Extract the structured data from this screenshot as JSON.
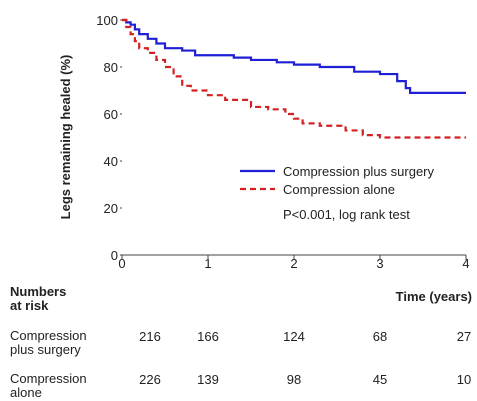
{
  "chart_data": {
    "type": "line",
    "steps": true,
    "ylabel": "Legs remaining healed (%)",
    "xlabel": "Time (years)",
    "xlim": [
      0,
      4
    ],
    "xticks": [
      0,
      1,
      2,
      3,
      4
    ],
    "ylim": [
      0,
      100
    ],
    "yticks": [
      0,
      20,
      40,
      60,
      80,
      100
    ],
    "annotation": "P<0.001, log rank test",
    "series": [
      {
        "name": "Compression plus surgery",
        "color": "#1f1fd6",
        "dash": false,
        "x": [
          0,
          0.05,
          0.1,
          0.15,
          0.2,
          0.3,
          0.4,
          0.5,
          0.7,
          0.85,
          1.3,
          1.5,
          1.8,
          2.0,
          2.3,
          2.7,
          3.0,
          3.2,
          3.3,
          3.35,
          4.0
        ],
        "values": [
          100,
          99,
          98,
          96,
          94,
          92,
          90,
          88,
          87,
          85,
          84,
          83,
          82,
          81,
          80,
          78,
          77,
          74,
          71,
          69,
          69
        ]
      },
      {
        "name": "Compression alone",
        "color": "#d42020",
        "dash": true,
        "x": [
          0,
          0.05,
          0.1,
          0.15,
          0.2,
          0.3,
          0.4,
          0.5,
          0.6,
          0.7,
          0.8,
          1.0,
          1.2,
          1.5,
          1.7,
          1.9,
          2.0,
          2.1,
          2.3,
          2.6,
          2.8,
          3.0,
          4.0
        ],
        "values": [
          100,
          97,
          94,
          91,
          88,
          86,
          83,
          80,
          76,
          72,
          70,
          68,
          66,
          63,
          62,
          60,
          58,
          56,
          55,
          53,
          51,
          50,
          50
        ]
      }
    ]
  },
  "risk_table": {
    "title": "Numbers at risk",
    "rows": [
      {
        "name": "Compression plus surgery",
        "values": [
          216,
          166,
          124,
          68,
          27
        ]
      },
      {
        "name": "Compression alone",
        "values": [
          226,
          139,
          98,
          45,
          10
        ]
      }
    ]
  }
}
